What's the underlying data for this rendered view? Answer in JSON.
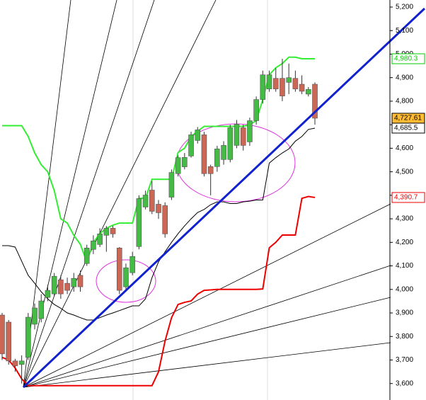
{
  "chart_data": {
    "type": "candlestick",
    "ylim": [
      3530,
      5230
    ],
    "yticks": [
      {
        "value": 3600,
        "label": "3,600"
      },
      {
        "value": 3700,
        "label": "3,700"
      },
      {
        "value": 3800,
        "label": "3,800"
      },
      {
        "value": 3900,
        "label": "3,900"
      },
      {
        "value": 4000,
        "label": "4,000"
      },
      {
        "value": 4100,
        "label": "4,100"
      },
      {
        "value": 4200,
        "label": "4,200"
      },
      {
        "value": 4300,
        "label": "4,300"
      },
      {
        "value": 4400,
        "label": "4,400"
      },
      {
        "value": 4500,
        "label": "4,500"
      },
      {
        "value": 4600,
        "label": "4,600"
      },
      {
        "value": 4700,
        "label": "4,700"
      },
      {
        "value": 4800,
        "label": "4,800"
      },
      {
        "value": 4900,
        "label": "4,900"
      },
      {
        "value": 5000,
        "label": "5,000"
      },
      {
        "value": 5100,
        "label": "5,100"
      },
      {
        "value": 5200,
        "label": "5,200"
      }
    ],
    "up_color": "#44bb44",
    "down_color": "#cc6655",
    "open": [
      3891,
      3861,
      3696,
      3681,
      3711,
      3852,
      3876,
      3966,
      3981,
      4041,
      4026,
      4011,
      4060,
      4110,
      4170,
      4191,
      4230,
      4260,
      4176,
      4011,
      4071,
      4182,
      4350,
      4422,
      4362,
      4356,
      4392,
      4492,
      4521,
      4567,
      4633,
      4657,
      4522,
      4522,
      4552,
      4552,
      4612,
      4687,
      4627,
      4717,
      4807,
      4852,
      4897,
      4897,
      4880,
      4897,
      4872,
      4830,
      4872
    ],
    "high": [
      3900,
      3870,
      3705,
      3720,
      3900,
      3940,
      3980,
      4020,
      4070,
      4060,
      4050,
      4070,
      4080,
      4190,
      4230,
      4260,
      4270,
      4270,
      4180,
      4110,
      4160,
      4400,
      4420,
      4460,
      4380,
      4370,
      4510,
      4570,
      4580,
      4670,
      4690,
      4670,
      4530,
      4610,
      4630,
      4700,
      4720,
      4700,
      4730,
      4820,
      4930,
      4930,
      4940,
      4980,
      4960,
      4930,
      4910,
      4860,
      4880
    ],
    "low": [
      3700,
      3680,
      3650,
      3600,
      3700,
      3830,
      3860,
      3950,
      3970,
      3960,
      3980,
      3990,
      3990,
      4100,
      4150,
      4180,
      4160,
      4220,
      3980,
      3990,
      4060,
      4170,
      4340,
      4320,
      4300,
      4220,
      4380,
      4480,
      4510,
      4560,
      4620,
      4480,
      4400,
      4500,
      4530,
      4540,
      4600,
      4590,
      4610,
      4700,
      4790,
      4840,
      4840,
      4800,
      4830,
      4840,
      4830,
      4820,
      4700
    ],
    "close": [
      3726,
      3696,
      3675,
      3696,
      3882,
      3921,
      3951,
      3996,
      4056,
      3981,
      3996,
      4047,
      4011,
      4176,
      4206,
      4236,
      4260,
      4236,
      3996,
      4092,
      4140,
      4386,
      4401,
      4332,
      4326,
      4236,
      4497,
      4560,
      4561,
      4657,
      4678,
      4492,
      4492,
      4597,
      4612,
      4687,
      4702,
      4612,
      4717,
      4807,
      4912,
      4912,
      4852,
      4822,
      4900,
      4852,
      4842,
      4850,
      4727.61
    ],
    "series": [
      {
        "color": "#33ee33",
        "values": [
          4696,
          4696,
          4696,
          4696,
          4650,
          4580,
          4530,
          4500,
          4420,
          4300,
          4282,
          4230,
          4192,
          4117,
          4200,
          4237,
          4260,
          4273,
          4282,
          4282,
          4282,
          4387,
          4387,
          4468,
          4468,
          4468,
          4468,
          4582,
          4600,
          4650,
          4672,
          4693,
          4693,
          4693,
          4693,
          4693,
          4693,
          4693,
          4700,
          4717,
          4807,
          4912,
          4942,
          4960,
          4987,
          4987,
          4980.3,
          4980.3,
          4980.3
        ]
      },
      {
        "color": "#000000",
        "values": [
          4186,
          4186,
          4180,
          4120,
          4060,
          4026,
          3990,
          3960,
          3936,
          3920,
          3900,
          3891,
          3880,
          3870,
          3870,
          3880,
          3891,
          3900,
          3910,
          3920,
          3930,
          3930,
          3960,
          4050,
          4117,
          4160,
          4200,
          4237,
          4270,
          4300,
          4327,
          4340,
          4360,
          4372,
          4372,
          4365,
          4365,
          4372,
          4375,
          4380,
          4380,
          4537,
          4560,
          4580,
          4597,
          4630,
          4650,
          4680,
          4685.5
        ]
      },
      {
        "color": "#ee0000",
        "values": [
          3711,
          3700,
          3666,
          3620,
          3591,
          3591,
          3591,
          3591,
          3591,
          3591,
          3591,
          3591,
          3591,
          3591,
          3591,
          3591,
          3591,
          3591,
          3591,
          3591,
          3591,
          3591,
          3591,
          3591,
          3650,
          3780,
          3880,
          3936,
          3945,
          3951,
          3980,
          3996,
          3998,
          4000,
          4000,
          4000,
          4000,
          4000,
          4000,
          4000,
          4002,
          4177,
          4200,
          4231,
          4231,
          4231,
          4387,
          4395,
          4390.7
        ]
      }
    ],
    "price_labels": [
      {
        "value": 4980.3,
        "label": "4,980.3",
        "color": "#00cc00",
        "fill": "#ffffff"
      },
      {
        "value": 4727.61,
        "label": "4,727.61",
        "color": "#000000",
        "fill": "#ffbb33"
      },
      {
        "value": 4685.5,
        "label": "4,685.5",
        "color": "#000000",
        "fill": "#ffffff"
      },
      {
        "value": 4390.7,
        "label": "4,390.7",
        "color": "#ee0000",
        "fill": "#ffffff"
      }
    ]
  }
}
